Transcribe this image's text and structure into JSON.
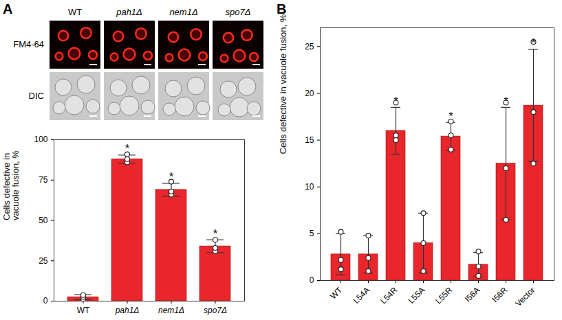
{
  "images": {
    "panel_label": "A",
    "columns": [
      "WT",
      "pah1Δ",
      "nem1Δ",
      "spo7Δ"
    ],
    "rows": [
      "FM4-64",
      "DIC"
    ]
  },
  "chart_data": [
    {
      "type": "bar",
      "y_label": "Cells defective in vacuole fusion, %",
      "categories": [
        "WT",
        "pah1Δ",
        "nem1Δ",
        "spo7Δ"
      ],
      "values": [
        2.5,
        88,
        69,
        34
      ],
      "errors": [
        1.5,
        2.5,
        4,
        4
      ],
      "points": [
        [
          1.2,
          2.6,
          3.7
        ],
        [
          86,
          88,
          91
        ],
        [
          66,
          68,
          74
        ],
        [
          31,
          33,
          38
        ]
      ],
      "significance": [
        null,
        "*",
        "*",
        "*"
      ],
      "color": "#e8262b",
      "ylim": [
        0,
        100
      ],
      "yticks": [
        0,
        25,
        50,
        75,
        100
      ]
    },
    {
      "type": "bar",
      "panel_label": "B",
      "y_label": "Cells defective in vacuole fusion, %",
      "categories": [
        "WT",
        "L54A",
        "L54R",
        "L55A",
        "L55R",
        "I56A",
        "I56R",
        "Vector"
      ],
      "values": [
        2.8,
        2.8,
        16,
        4,
        15.4,
        1.7,
        12.5,
        18.7
      ],
      "errors": [
        2.2,
        2,
        2.5,
        3.2,
        1.5,
        1.3,
        6,
        6
      ],
      "points": [
        [
          1.2,
          2.2,
          5.2
        ],
        [
          1,
          2.4,
          4.8
        ],
        [
          15,
          15.5,
          19
        ],
        [
          1,
          4,
          7.2
        ],
        [
          14,
          15.5,
          17
        ],
        [
          0.5,
          1.5,
          3.1
        ],
        [
          6.5,
          12,
          19
        ],
        [
          12.5,
          18,
          25.5
        ]
      ],
      "significance": [
        null,
        null,
        "*",
        null,
        "*",
        null,
        "*",
        "*"
      ],
      "color": "#e8262b",
      "ylim": [
        0,
        27
      ],
      "yticks": [
        0,
        5,
        10,
        15,
        20,
        25
      ]
    }
  ]
}
